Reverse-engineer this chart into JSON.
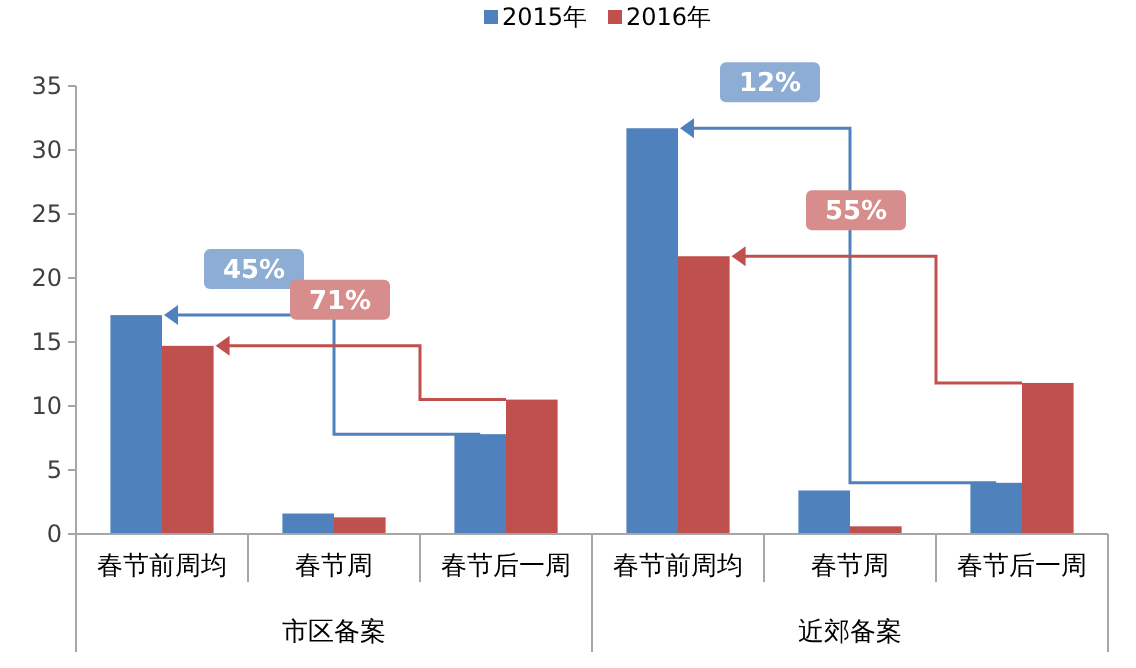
{
  "chart_data": {
    "type": "bar",
    "categories": [
      "春节前周均",
      "春节周",
      "春节后一周",
      "春节前周均",
      "春节周",
      "春节后一周"
    ],
    "series": [
      {
        "name": "2015年",
        "color": "#4f81bd",
        "values": [
          17.1,
          1.6,
          7.8,
          31.7,
          3.4,
          4.0
        ]
      },
      {
        "name": "2016年",
        "color": "#c0504d",
        "values": [
          14.7,
          1.3,
          10.5,
          21.7,
          0.6,
          11.8
        ]
      }
    ],
    "ylim": [
      0,
      35
    ],
    "yticks": [
      0,
      5,
      10,
      15,
      20,
      25,
      30,
      35
    ],
    "grid": false,
    "legend": "top",
    "annotations": [
      "45%",
      "71%",
      "12%",
      "55%",
      "市区备案",
      "近郊备案"
    ]
  }
}
